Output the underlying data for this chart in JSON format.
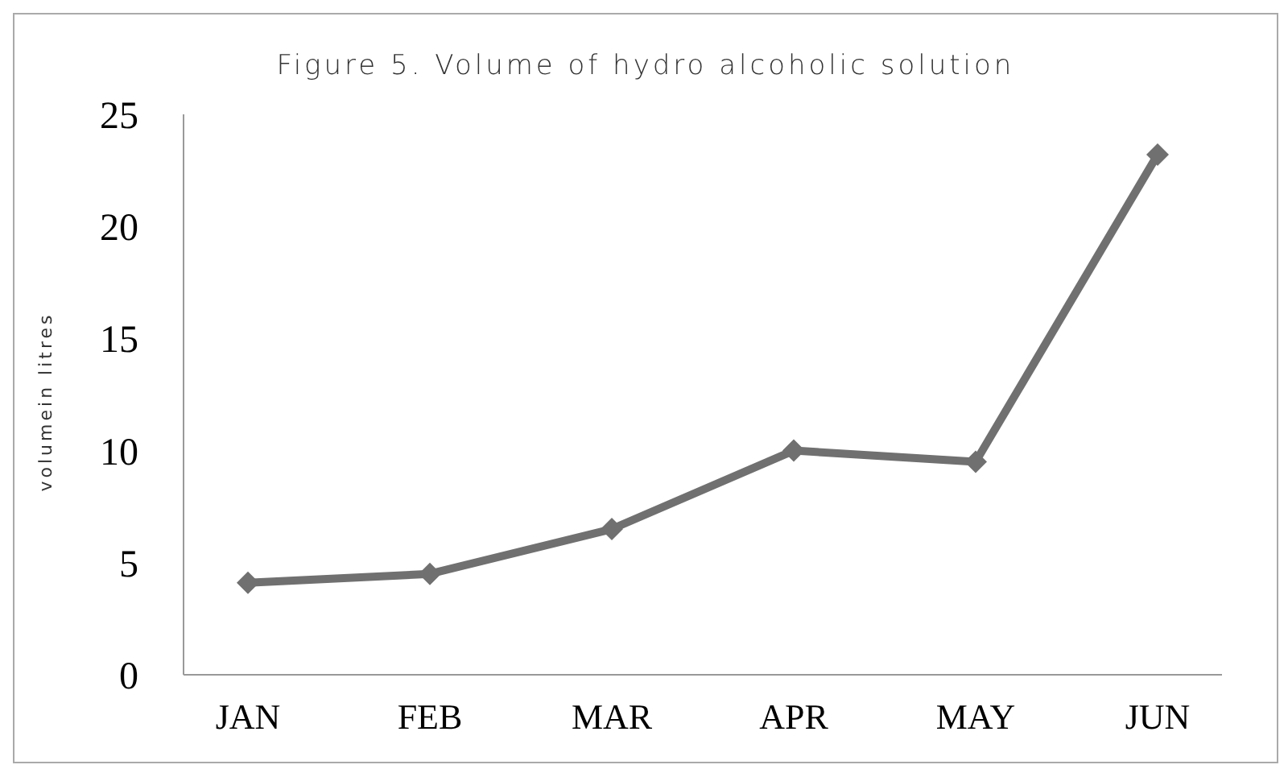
{
  "chart_data": {
    "type": "line",
    "title": "Figure 5. Volume of hydro alcoholic solution",
    "ylabel": "volumein litres",
    "categories": [
      "JAN",
      "FEB",
      "MAR",
      "APR",
      "MAY",
      "JUN"
    ],
    "series": [
      {
        "color": "#707070",
        "values": [
          4.1,
          4.5,
          6.5,
          10.0,
          9.5,
          23.2
        ]
      }
    ],
    "ylim": [
      0,
      25
    ],
    "yticks": [
      0,
      5,
      10,
      15,
      20,
      25
    ],
    "grid": false,
    "legend": false,
    "marker": "diamond",
    "line_style": "solid"
  }
}
